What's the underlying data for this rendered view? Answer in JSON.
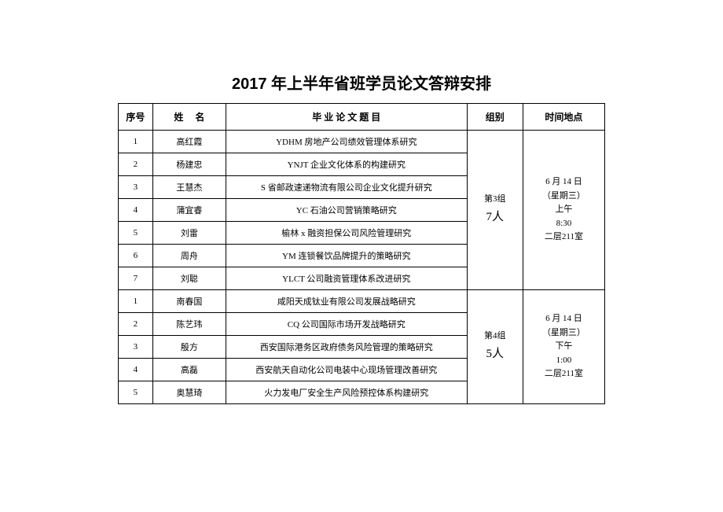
{
  "title": "2017 年上半年省班学员论文答辩安排",
  "headers": {
    "seq": "序号",
    "name": "姓 名",
    "topic": "毕 业 论 文 题 目",
    "group": "组别",
    "time": "时间地点"
  },
  "groups": [
    {
      "group_name": "第3组",
      "group_count": "7人",
      "time_lines": [
        "6 月 14 日",
        "（星期三）",
        "上午",
        "8:30",
        "二层211室"
      ],
      "rows": [
        {
          "seq": "1",
          "name": "高红霞",
          "topic": "YDHM 房地产公司绩效管理体系研究"
        },
        {
          "seq": "2",
          "name": "杨建忠",
          "topic": "YNJT 企业文化体系的构建研究"
        },
        {
          "seq": "3",
          "name": "王慧杰",
          "topic": "S 省邮政速递物流有限公司企业文化提升研究"
        },
        {
          "seq": "4",
          "name": "蒲宜睿",
          "topic": "YC 石油公司营销策略研究"
        },
        {
          "seq": "5",
          "name": "刘雷",
          "topic": "榆林 x 融资担保公司风险管理研究"
        },
        {
          "seq": "6",
          "name": "周舟",
          "topic": "YM 连锁餐饮品牌提升的策略研究"
        },
        {
          "seq": "7",
          "name": "刘聪",
          "topic": "YLCT 公司融资管理体系改进研究"
        }
      ]
    },
    {
      "group_name": "第4组",
      "group_count": "5人",
      "time_lines": [
        "6 月 14 日",
        "（星期三）",
        "下午",
        "1:00",
        "二层211室"
      ],
      "rows": [
        {
          "seq": "1",
          "name": "南春国",
          "topic": "咸阳天成钛业有限公司发展战略研究"
        },
        {
          "seq": "2",
          "name": "陈艺玮",
          "topic": "CQ 公司国际市场开发战略研究"
        },
        {
          "seq": "3",
          "name": "殷方",
          "topic": "西安国际港务区政府债务风险管理的策略研究"
        },
        {
          "seq": "4",
          "name": "高磊",
          "topic": "西安航天自动化公司电装中心现场管理改善研究"
        },
        {
          "seq": "5",
          "name": "奥慧琦",
          "topic": "火力发电厂安全生产风险预控体系构建研究"
        }
      ]
    }
  ]
}
